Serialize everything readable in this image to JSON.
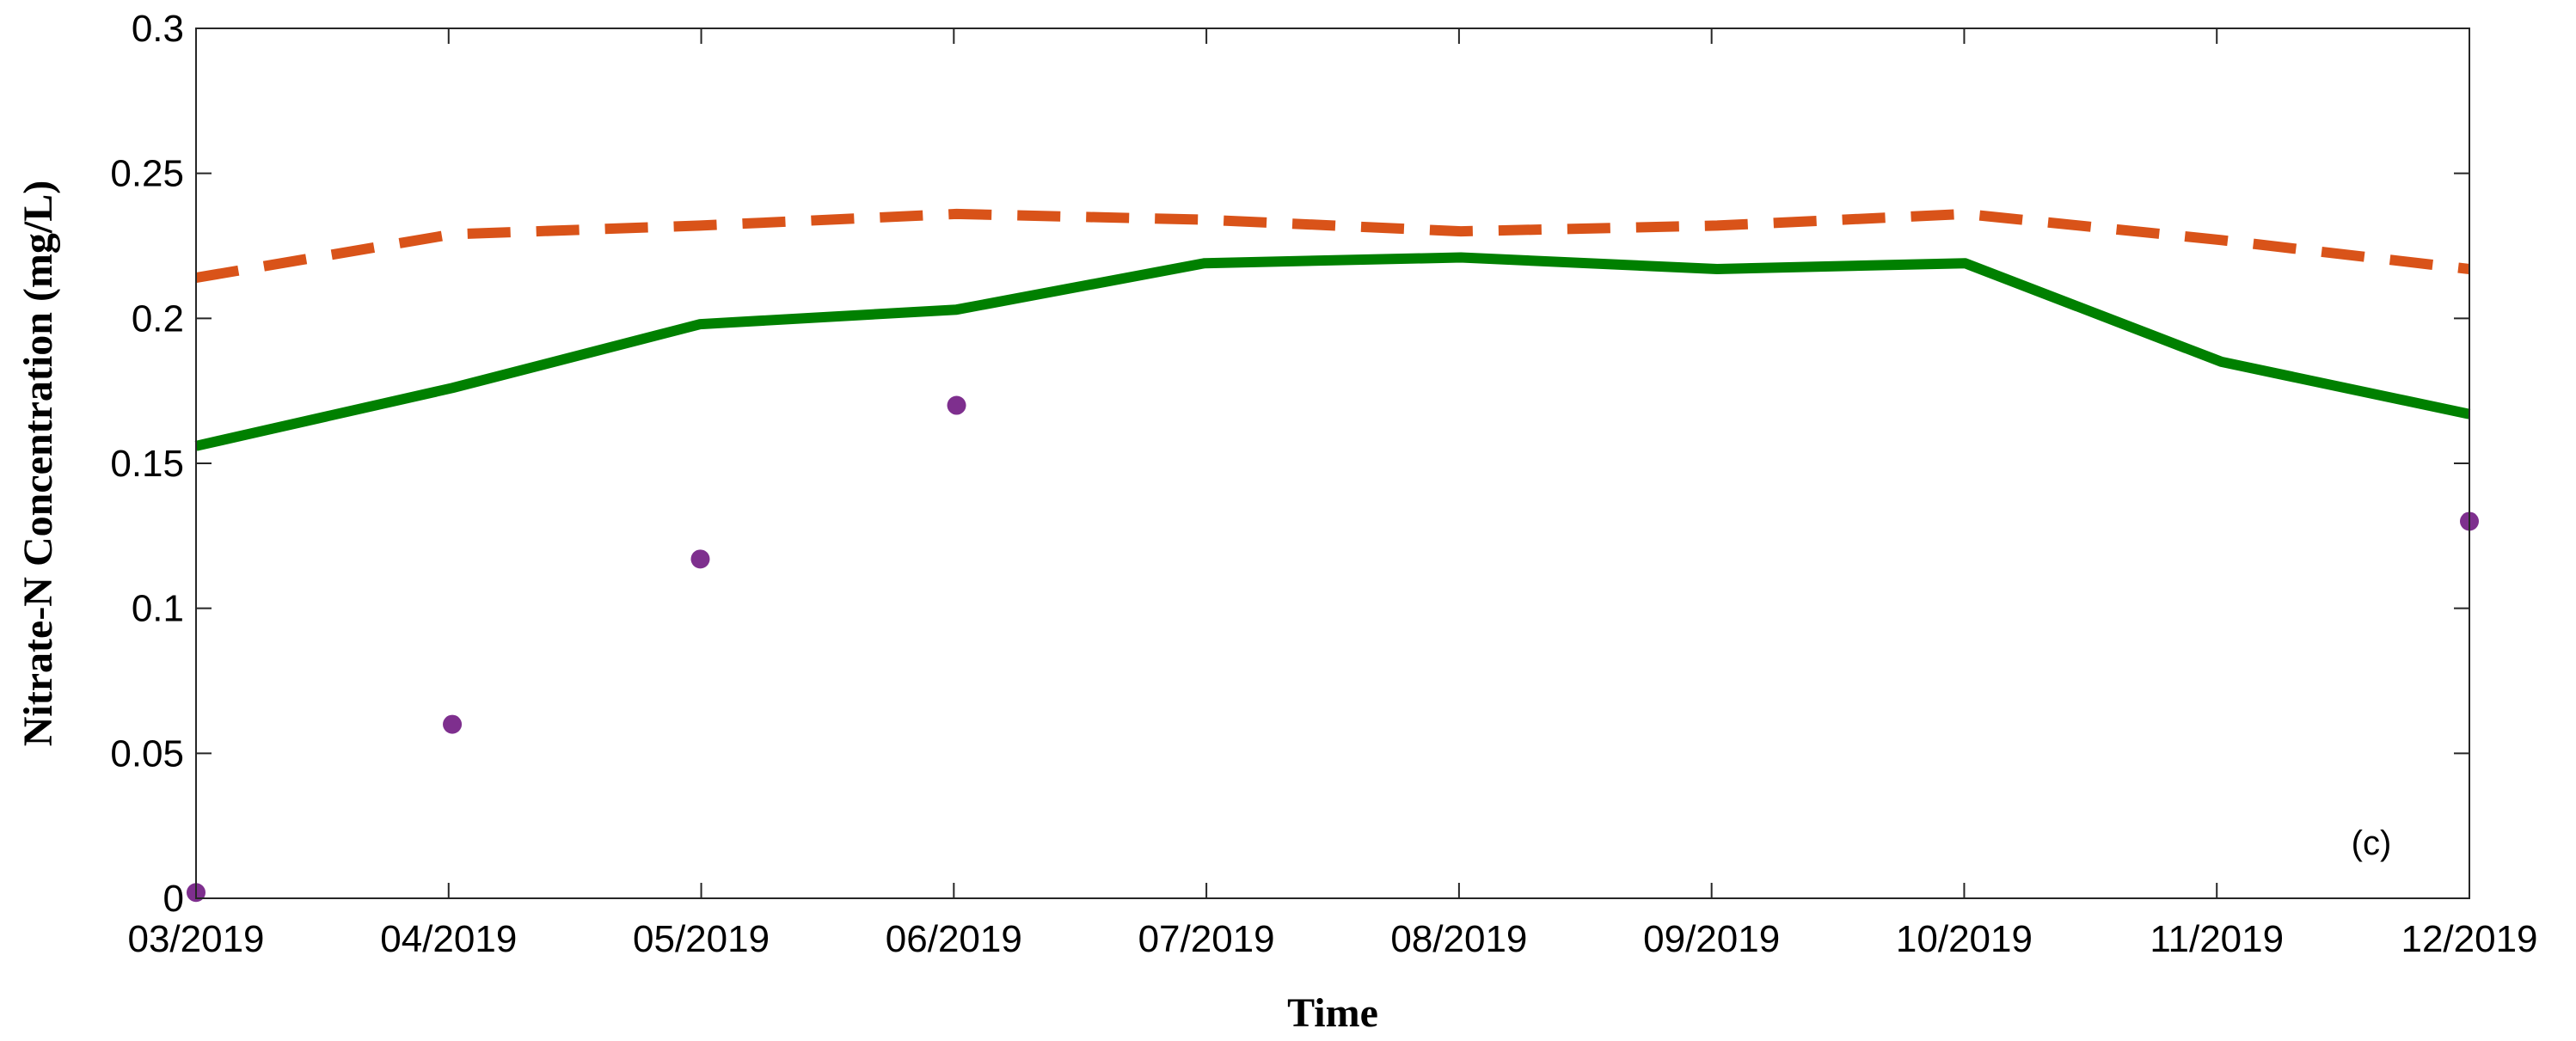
{
  "chart_data": {
    "type": "line",
    "title": "",
    "xlabel": "Time",
    "ylabel": "Nitrate-N Concentration (mg/L)",
    "panel_label": "(c)",
    "x_tick_labels": [
      "03/2019",
      "04/2019",
      "05/2019",
      "06/2019",
      "07/2019",
      "08/2019",
      "09/2019",
      "10/2019",
      "11/2019",
      "12/2019"
    ],
    "y_tick_labels": [
      "0",
      "0.05",
      "0.1",
      "0.15",
      "0.2",
      "0.25",
      "0.3"
    ],
    "ylim": [
      0,
      0.3
    ],
    "xlim": [
      "2019-03-01",
      "2019-12-01"
    ],
    "grid": false,
    "legend": "none",
    "series": [
      {
        "style": "dashed",
        "color": "#D95319",
        "x": [
          "2019-03-01",
          "2019-04-01",
          "2019-05-01",
          "2019-06-01",
          "2019-07-01",
          "2019-08-01",
          "2019-09-01",
          "2019-10-01",
          "2019-11-01",
          "2019-12-01"
        ],
        "values": [
          0.214,
          0.229,
          0.232,
          0.236,
          0.234,
          0.23,
          0.232,
          0.236,
          0.227,
          0.217
        ]
      },
      {
        "style": "solid",
        "color": "#008000",
        "x": [
          "2019-03-01",
          "2019-04-01",
          "2019-05-01",
          "2019-06-01",
          "2019-07-01",
          "2019-08-01",
          "2019-09-01",
          "2019-10-01",
          "2019-11-01",
          "2019-12-01"
        ],
        "values": [
          0.156,
          0.176,
          0.198,
          0.203,
          0.219,
          0.221,
          0.217,
          0.219,
          0.185,
          0.167
        ]
      },
      {
        "style": "markers",
        "color": "#7E2F8E",
        "x": [
          "2019-03-01",
          "2019-04-01",
          "2019-05-01",
          "2019-06-01",
          "2019-12-01"
        ],
        "values": [
          0.002,
          0.06,
          0.117,
          0.17,
          0.13
        ]
      }
    ]
  }
}
